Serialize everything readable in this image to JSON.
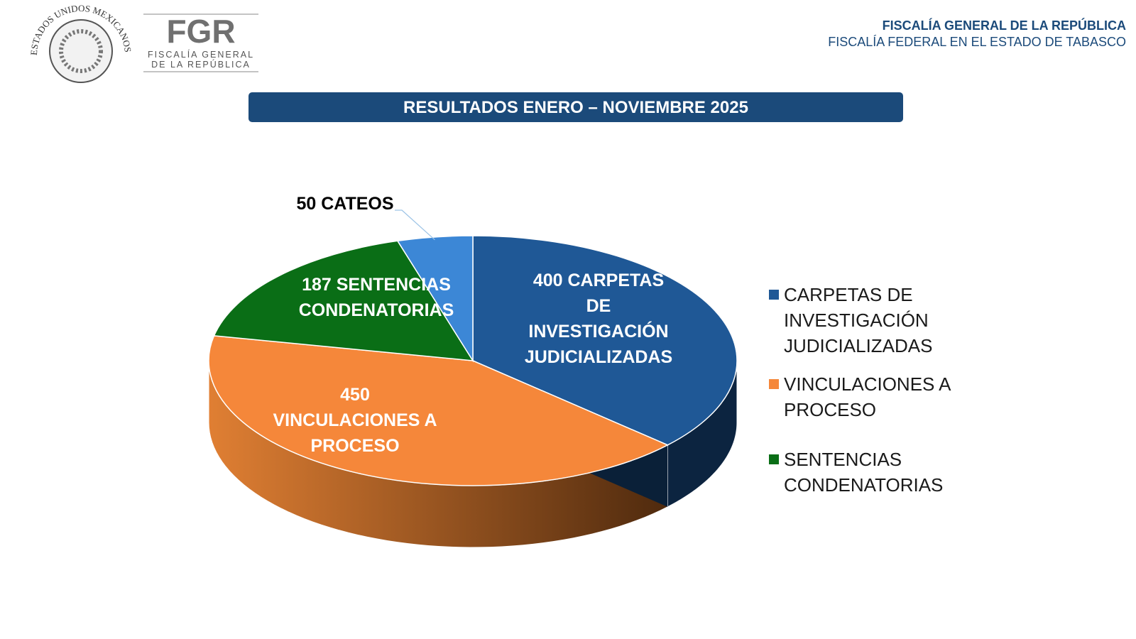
{
  "header": {
    "seal_text": "ESTADOS UNIDOS MEXICANOS",
    "logo": "FGR",
    "logo_line1": "FISCALÍA GENERAL",
    "logo_line2": "DE LA REPÚBLICA",
    "org_title": "FISCALÍA GENERAL DE LA REPÚBLICA",
    "org_subtitle": "FISCALÍA FEDERAL EN EL ESTADO DE TABASCO"
  },
  "chart_data": {
    "type": "pie",
    "title": "RESULTADOS ENERO – NOVIEMBRE 2025",
    "categories": [
      "CARPETAS DE INVESTIGACIÓN JUDICIALIZADAS",
      "VINCULACIONES A PROCESO",
      "SENTENCIAS CONDENATORIAS",
      null
    ],
    "values": [
      400,
      450,
      187,
      50
    ],
    "value_labels": [
      "400 CARPETAS DE INVESTIGACIÓN JUDICIALIZADAS",
      "450 VINCULACIONES A PROCESO",
      "187 SENTENCIAS CONDENATORIAS",
      "50 CATEOS"
    ],
    "colors": [
      "#1f5896",
      "#f5873a",
      "#0a6e16",
      "#3c87d6"
    ],
    "legend": "right"
  }
}
